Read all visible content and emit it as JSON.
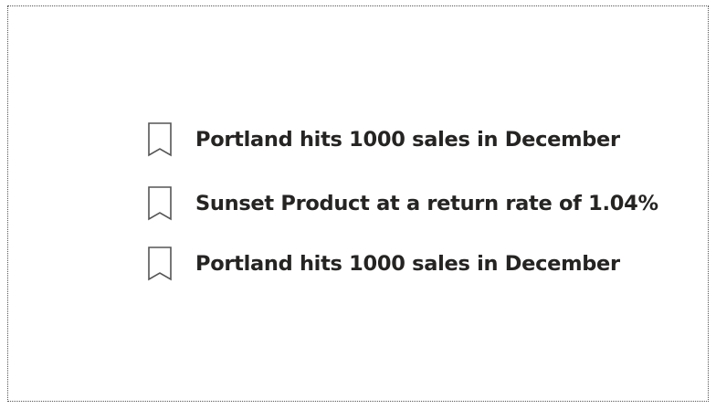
{
  "bookmarks": {
    "items": [
      {
        "label": "Portland hits 1000 sales in December",
        "icon": "bookmark-icon"
      },
      {
        "label": "Sunset Product at a return rate of 1.04%",
        "icon": "bookmark-icon"
      },
      {
        "label": "Portland hits 1000 sales in December",
        "icon": "bookmark-icon"
      }
    ]
  },
  "colors": {
    "text": "#252423",
    "icon_stroke": "#555555",
    "border": "#555555",
    "background": "#ffffff"
  }
}
